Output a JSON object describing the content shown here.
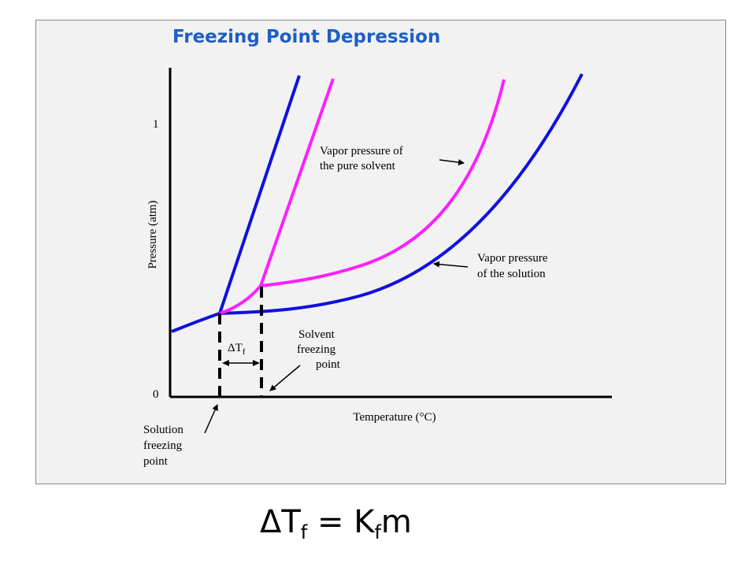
{
  "title": "Freezing Point Depression",
  "axes": {
    "y_label": "Pressure (atm)",
    "x_label": "Temperature (°C)",
    "y_ticks": [
      "0",
      "1"
    ]
  },
  "annotations": {
    "pure_solvent": [
      "Vapor pressure of",
      "the pure solvent"
    ],
    "solution": [
      "Vapor pressure",
      "of the solution"
    ],
    "solvent_fp": [
      "Solvent",
      "freezing",
      "point"
    ],
    "solution_fp": [
      "Solution",
      "freezing",
      "point"
    ],
    "delta": "ΔT",
    "delta_sub": "f"
  },
  "equation": {
    "lhs": "ΔT",
    "lhs_sub": "f",
    "eq": " = K",
    "k_sub": "f",
    "rhs": "m"
  },
  "colors": {
    "solution": "#1010e0",
    "pure_solvent": "#ff1fff",
    "title": "#1f5ec6",
    "axes": "#000000",
    "panel": "#f2f2f2"
  }
}
